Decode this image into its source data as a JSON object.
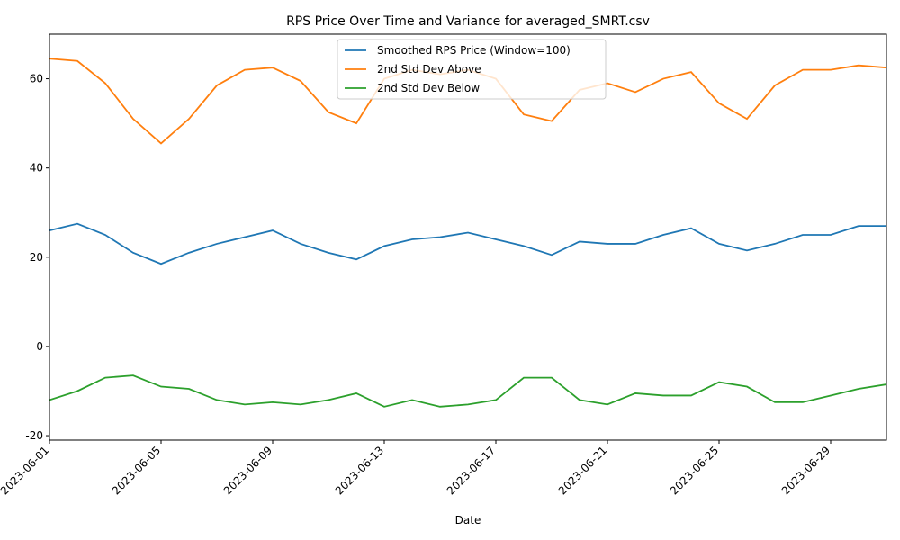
{
  "chart_data": {
    "type": "line",
    "title": "RPS Price Over Time and Variance for averaged_SMRT.csv",
    "x_label": "Date",
    "x": [
      "2023-06-01",
      "2023-06-02",
      "2023-06-03",
      "2023-06-04",
      "2023-06-05",
      "2023-06-06",
      "2023-06-07",
      "2023-06-08",
      "2023-06-09",
      "2023-06-10",
      "2023-06-11",
      "2023-06-12",
      "2023-06-13",
      "2023-06-14",
      "2023-06-15",
      "2023-06-16",
      "2023-06-17",
      "2023-06-18",
      "2023-06-19",
      "2023-06-20",
      "2023-06-21",
      "2023-06-22",
      "2023-06-23",
      "2023-06-24",
      "2023-06-25",
      "2023-06-26",
      "2023-06-27",
      "2023-06-28",
      "2023-06-29",
      "2023-06-30",
      "2023-07-01"
    ],
    "series": [
      {
        "name": "Smoothed RPS Price (Window=100)",
        "color": "#1f77b4",
        "values": [
          26,
          27.5,
          25,
          21,
          18.5,
          21,
          23,
          24.5,
          26,
          23,
          21,
          19.5,
          22.5,
          24,
          24.5,
          25.5,
          24,
          22.5,
          20.5,
          23.5,
          23,
          23,
          25,
          26.5,
          23,
          21.5,
          23,
          25,
          25,
          27,
          27
        ]
      },
      {
        "name": "2nd Std Dev Above",
        "color": "#ff7f0e",
        "values": [
          64.5,
          64,
          59,
          51,
          45.5,
          51,
          58.5,
          62,
          62.5,
          59.5,
          52.5,
          50,
          60,
          62,
          61,
          62,
          60,
          52,
          50.5,
          57.5,
          59,
          57,
          60,
          61.5,
          54.5,
          51,
          58.5,
          62,
          62,
          63,
          62.5
        ]
      },
      {
        "name": "2nd Std Dev Below",
        "color": "#2ca02c",
        "values": [
          -12,
          -10,
          -7,
          -6.5,
          -9,
          -9.5,
          -12,
          -13,
          -12.5,
          -13,
          -12,
          -10.5,
          -13.5,
          -12,
          -13.5,
          -13,
          -12,
          -7,
          -7,
          -12,
          -13,
          -10.5,
          -11,
          -11,
          -8,
          -9,
          -12.5,
          -12.5,
          -11,
          -9.5,
          -8.5
        ]
      }
    ],
    "xlim": [
      "2023-06-01",
      "2023-07-01"
    ],
    "xticks": [
      "2023-06-01",
      "2023-06-05",
      "2023-06-09",
      "2023-06-13",
      "2023-06-17",
      "2023-06-21",
      "2023-06-25",
      "2023-06-29"
    ],
    "ylim": [
      -21,
      70
    ],
    "yticks": [
      -20,
      0,
      20,
      40,
      60
    ],
    "grid": false,
    "legend": "upper center"
  }
}
